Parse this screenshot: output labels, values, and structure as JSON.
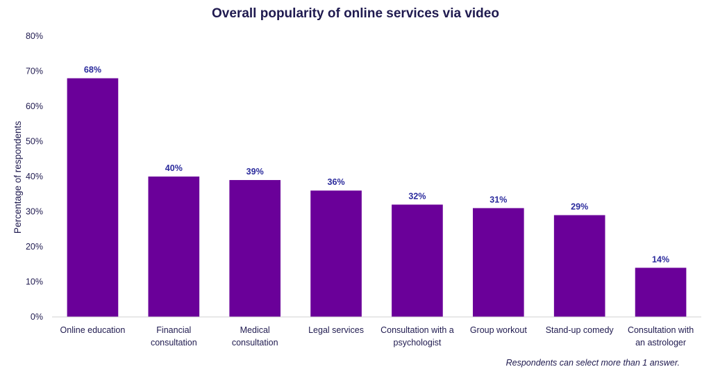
{
  "chart_data": {
    "type": "bar",
    "title": "Overall popularity of online services via video",
    "xlabel": "",
    "ylabel": "Percentage of respondents",
    "ylim": [
      0,
      80
    ],
    "y_ticks": [
      "0%",
      "10%",
      "20%",
      "30%",
      "40%",
      "50%",
      "60%",
      "70%",
      "80%"
    ],
    "categories": [
      [
        "Online education"
      ],
      [
        "Financial",
        "consultation"
      ],
      [
        "Medical",
        "consultation"
      ],
      [
        "Legal services"
      ],
      [
        "Consultation with a",
        "psychologist"
      ],
      [
        "Group workout"
      ],
      [
        "Stand-up comedy"
      ],
      [
        "Consultation with",
        "an astrologer"
      ]
    ],
    "values": [
      68,
      40,
      39,
      36,
      32,
      31,
      29,
      14
    ],
    "data_labels": [
      "68%",
      "40%",
      "39%",
      "36%",
      "32%",
      "31%",
      "29%",
      "14%"
    ],
    "bar_color": "#6a0099",
    "grid": false,
    "legend": "none",
    "note": "Respondents can select more than 1 answer."
  }
}
